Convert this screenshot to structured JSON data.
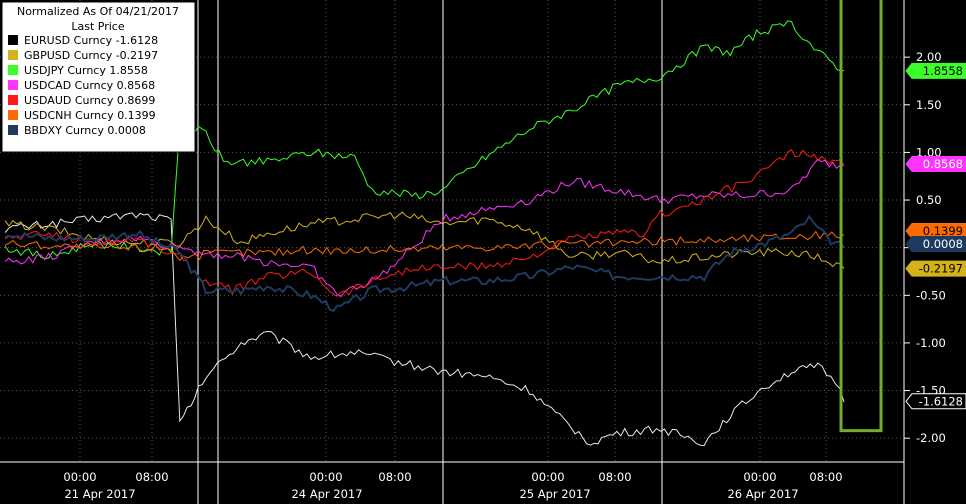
{
  "chart_data": {
    "type": "line",
    "legend_placement": "top-left",
    "legend_title": [
      "Normalized As Of 04/21/2017",
      "Last Price"
    ],
    "ylim": [
      -2.25,
      2.6
    ],
    "y_ticks": [
      2.0,
      1.5,
      1.0,
      0.5,
      0.0,
      -0.5,
      -1.0,
      -1.5,
      -2.0
    ],
    "y_tick_labels": [
      "2.00",
      "1.50",
      "1.00",
      "0.50",
      "",
      "-0.50",
      "-1.00",
      "-1.50",
      "-2.00"
    ],
    "grid": true,
    "x_tick_labels": [
      "00:00",
      "08:00",
      "00:00",
      "08:00",
      "00:00",
      "08:00",
      "00:00",
      "08:00"
    ],
    "x_day_labels": [
      "21 Apr 2017",
      "24 Apr 2017",
      "25 Apr 2017",
      "26 Apr 2017"
    ],
    "highlight_box": {
      "color": "#6fae2a",
      "y_range": [
        -1.9,
        2.6
      ]
    },
    "series": [
      {
        "name": "EURUSD Curncy",
        "last": "-1.6128",
        "color": "#000000",
        "tag_bg": "#000000",
        "tag_fg": "#ffffff",
        "points": [
          [
            0,
            0.2
          ],
          [
            0.05,
            0.25
          ],
          [
            0.1,
            0.3
          ],
          [
            0.15,
            0.35
          ],
          [
            0.19,
            0.3
          ],
          [
            0.2,
            -1.85
          ],
          [
            0.23,
            -1.35
          ],
          [
            0.27,
            -1.0
          ],
          [
            0.3,
            -0.9
          ],
          [
            0.35,
            -1.15
          ],
          [
            0.4,
            -1.1
          ],
          [
            0.45,
            -1.2
          ],
          [
            0.5,
            -1.3
          ],
          [
            0.55,
            -1.35
          ],
          [
            0.6,
            -1.5
          ],
          [
            0.63,
            -1.75
          ],
          [
            0.67,
            -2.05
          ],
          [
            0.7,
            -1.95
          ],
          [
            0.75,
            -1.9
          ],
          [
            0.8,
            -2.05
          ],
          [
            0.83,
            -1.75
          ],
          [
            0.87,
            -1.45
          ],
          [
            0.9,
            -1.3
          ],
          [
            0.93,
            -1.25
          ],
          [
            0.95,
            -1.4
          ],
          [
            0.96,
            -1.62
          ]
        ]
      },
      {
        "name": "GBPUSD Curncy",
        "last": "-0.2197",
        "color": "#d4b21a",
        "tag_bg": "#d4b21a",
        "tag_fg": "#000000",
        "points": [
          [
            0,
            0.25
          ],
          [
            0.05,
            0.2
          ],
          [
            0.1,
            0.1
          ],
          [
            0.15,
            0.05
          ],
          [
            0.2,
            0.05
          ],
          [
            0.23,
            0.3
          ],
          [
            0.27,
            0.05
          ],
          [
            0.3,
            0.15
          ],
          [
            0.35,
            0.25
          ],
          [
            0.4,
            0.3
          ],
          [
            0.45,
            0.35
          ],
          [
            0.5,
            0.25
          ],
          [
            0.55,
            0.3
          ],
          [
            0.6,
            0.2
          ],
          [
            0.65,
            -0.1
          ],
          [
            0.7,
            -0.05
          ],
          [
            0.75,
            -0.15
          ],
          [
            0.8,
            -0.1
          ],
          [
            0.85,
            -0.05
          ],
          [
            0.9,
            -0.05
          ],
          [
            0.93,
            -0.1
          ],
          [
            0.96,
            -0.22
          ]
        ]
      },
      {
        "name": "USDJPY Curncy",
        "last": "1.8558",
        "color": "#3cff2a",
        "tag_bg": "#3cff2a",
        "tag_fg": "#000000",
        "points": [
          [
            0,
            0.0
          ],
          [
            0.05,
            -0.1
          ],
          [
            0.1,
            0.05
          ],
          [
            0.15,
            0.0
          ],
          [
            0.19,
            -0.05
          ],
          [
            0.2,
            1.3
          ],
          [
            0.23,
            1.2
          ],
          [
            0.25,
            0.9
          ],
          [
            0.3,
            0.9
          ],
          [
            0.35,
            1.0
          ],
          [
            0.4,
            0.95
          ],
          [
            0.42,
            0.6
          ],
          [
            0.47,
            0.55
          ],
          [
            0.5,
            0.6
          ],
          [
            0.52,
            0.75
          ],
          [
            0.55,
            0.95
          ],
          [
            0.6,
            1.25
          ],
          [
            0.65,
            1.45
          ],
          [
            0.7,
            1.7
          ],
          [
            0.75,
            1.8
          ],
          [
            0.8,
            2.1
          ],
          [
            0.83,
            2.05
          ],
          [
            0.86,
            2.25
          ],
          [
            0.9,
            2.35
          ],
          [
            0.93,
            2.05
          ],
          [
            0.96,
            1.86
          ]
        ]
      },
      {
        "name": "USDCAD Curncy",
        "last": "0.8568",
        "color": "#ff33ff",
        "tag_bg": "#ff33ff",
        "tag_fg": "#ffffff",
        "points": [
          [
            0,
            -0.15
          ],
          [
            0.05,
            -0.1
          ],
          [
            0.1,
            0.05
          ],
          [
            0.15,
            0.1
          ],
          [
            0.2,
            0.0
          ],
          [
            0.23,
            -0.05
          ],
          [
            0.27,
            -0.1
          ],
          [
            0.3,
            -0.15
          ],
          [
            0.35,
            -0.2
          ],
          [
            0.38,
            -0.5
          ],
          [
            0.42,
            -0.35
          ],
          [
            0.45,
            -0.15
          ],
          [
            0.5,
            0.3
          ],
          [
            0.55,
            0.4
          ],
          [
            0.6,
            0.5
          ],
          [
            0.65,
            0.7
          ],
          [
            0.7,
            0.6
          ],
          [
            0.75,
            0.5
          ],
          [
            0.8,
            0.55
          ],
          [
            0.85,
            0.55
          ],
          [
            0.9,
            0.6
          ],
          [
            0.93,
            0.9
          ],
          [
            0.96,
            0.86
          ]
        ]
      },
      {
        "name": "USDAUD Curncy",
        "last": "0.8699",
        "color": "#ff1a1a",
        "tag_bg": "#ff1a1a",
        "tag_fg": "#ffffff",
        "points": [
          [
            0,
            0.1
          ],
          [
            0.05,
            0.15
          ],
          [
            0.1,
            0.05
          ],
          [
            0.15,
            0.1
          ],
          [
            0.2,
            -0.1
          ],
          [
            0.23,
            -0.35
          ],
          [
            0.26,
            -0.45
          ],
          [
            0.3,
            -0.3
          ],
          [
            0.35,
            -0.25
          ],
          [
            0.38,
            -0.5
          ],
          [
            0.42,
            -0.35
          ],
          [
            0.45,
            -0.25
          ],
          [
            0.5,
            -0.2
          ],
          [
            0.55,
            -0.2
          ],
          [
            0.6,
            -0.1
          ],
          [
            0.65,
            0.1
          ],
          [
            0.7,
            0.15
          ],
          [
            0.73,
            0.15
          ],
          [
            0.75,
            0.35
          ],
          [
            0.8,
            0.5
          ],
          [
            0.85,
            0.7
          ],
          [
            0.9,
            1.0
          ],
          [
            0.93,
            0.95
          ],
          [
            0.96,
            0.87
          ]
        ]
      },
      {
        "name": "USDCNH Curncy",
        "last": "0.1399",
        "color": "#ff6a00",
        "tag_bg": "#ff6a00",
        "tag_fg": "#000000",
        "points": [
          [
            0,
            0.05
          ],
          [
            0.1,
            0.0
          ],
          [
            0.19,
            0.0
          ],
          [
            0.2,
            -0.1
          ],
          [
            0.25,
            -0.05
          ],
          [
            0.3,
            -0.05
          ],
          [
            0.35,
            -0.02
          ],
          [
            0.4,
            -0.03
          ],
          [
            0.5,
            0.0
          ],
          [
            0.6,
            0.02
          ],
          [
            0.7,
            0.05
          ],
          [
            0.8,
            0.08
          ],
          [
            0.9,
            0.12
          ],
          [
            0.96,
            0.14
          ]
        ]
      },
      {
        "name": "BBDXY Curncy",
        "last": "0.0008",
        "color": "#1f3a5f",
        "tag_bg": "#1f3a5f",
        "tag_fg": "#ffffff",
        "points": [
          [
            0,
            0.15
          ],
          [
            0.05,
            0.1
          ],
          [
            0.1,
            0.1
          ],
          [
            0.15,
            0.15
          ],
          [
            0.2,
            -0.05
          ],
          [
            0.23,
            -0.45
          ],
          [
            0.27,
            -0.45
          ],
          [
            0.3,
            -0.4
          ],
          [
            0.35,
            -0.5
          ],
          [
            0.38,
            -0.65
          ],
          [
            0.42,
            -0.45
          ],
          [
            0.47,
            -0.4
          ],
          [
            0.5,
            -0.35
          ],
          [
            0.55,
            -0.35
          ],
          [
            0.6,
            -0.3
          ],
          [
            0.65,
            -0.2
          ],
          [
            0.7,
            -0.3
          ],
          [
            0.75,
            -0.3
          ],
          [
            0.8,
            -0.3
          ],
          [
            0.83,
            -0.05
          ],
          [
            0.87,
            0.05
          ],
          [
            0.9,
            0.15
          ],
          [
            0.92,
            0.3
          ],
          [
            0.94,
            0.1
          ],
          [
            0.96,
            0.0
          ]
        ]
      }
    ]
  }
}
